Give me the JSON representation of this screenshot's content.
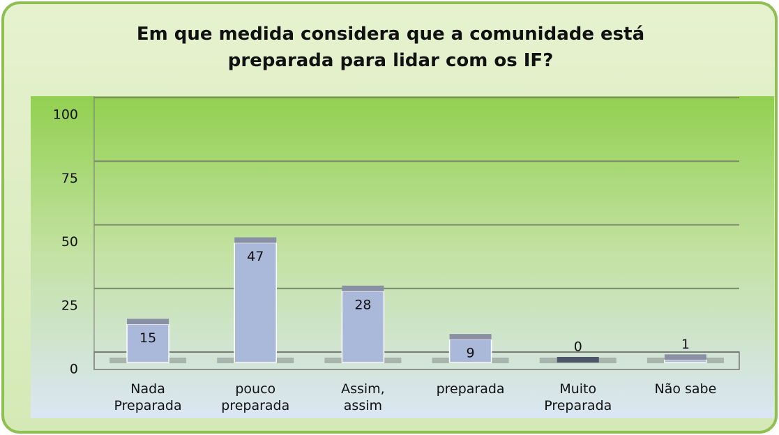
{
  "chart_data": {
    "type": "bar",
    "title": "Em que medida considera que a comunidade está preparada para lidar com os IF?",
    "categories": [
      "Nada Preparada",
      "pouco preparada",
      "Assim, assim",
      "preparada",
      "Muito Preparada",
      "Não sabe"
    ],
    "values": [
      15,
      47,
      28,
      9,
      0,
      1
    ],
    "color": "#aab8da",
    "ylim": [
      0,
      100
    ],
    "yticks": [
      0,
      25,
      50,
      75,
      100
    ],
    "grid": true
  }
}
